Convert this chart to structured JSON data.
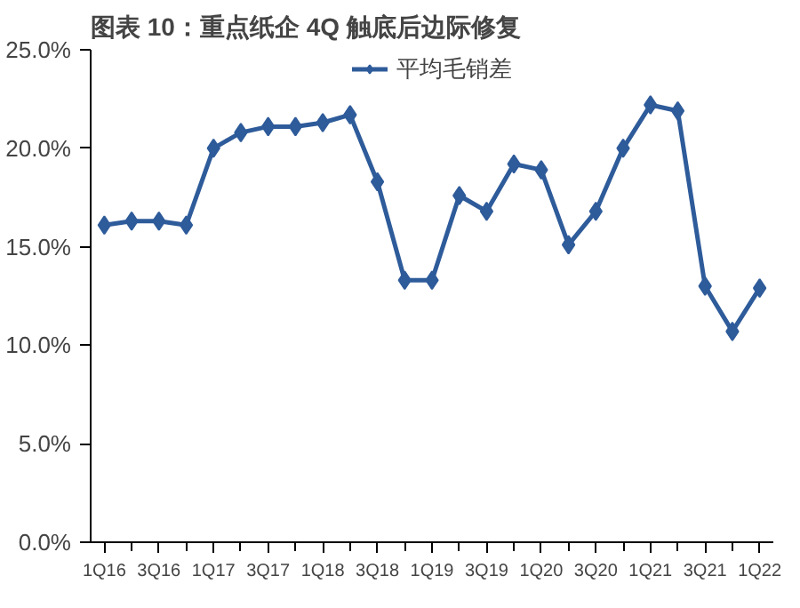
{
  "chart_data": {
    "type": "line",
    "title": "图表 10：重点纸企 4Q 触底后边际修复",
    "categories": [
      "1Q16",
      null,
      "3Q16",
      null,
      "1Q17",
      null,
      "3Q17",
      null,
      "1Q18",
      null,
      "3Q18",
      null,
      "1Q19",
      null,
      "3Q19",
      null,
      "1Q20",
      null,
      "3Q20",
      null,
      "1Q21",
      null,
      "3Q21",
      null,
      "1Q22"
    ],
    "series": [
      {
        "name": "平均毛销差",
        "color": "#2e5b9a",
        "values": [
          16.1,
          16.3,
          16.3,
          16.1,
          20.0,
          20.8,
          21.1,
          21.1,
          21.3,
          21.7,
          18.3,
          13.3,
          13.3,
          17.6,
          16.8,
          19.2,
          18.9,
          15.1,
          16.8,
          20.0,
          22.2,
          21.9,
          13.0,
          10.7,
          12.9
        ]
      }
    ],
    "ylim": [
      0,
      25
    ],
    "yticks": [
      {
        "value": 0,
        "label": "0.0%"
      },
      {
        "value": 5,
        "label": "5.0%"
      },
      {
        "value": 10,
        "label": "10.0%"
      },
      {
        "value": 15,
        "label": "15.0%"
      },
      {
        "value": 20,
        "label": "20.0%"
      },
      {
        "value": 25,
        "label": "25.0%"
      }
    ],
    "marker": "diamond",
    "line_style": "solid",
    "grid": false,
    "legend": "top"
  }
}
